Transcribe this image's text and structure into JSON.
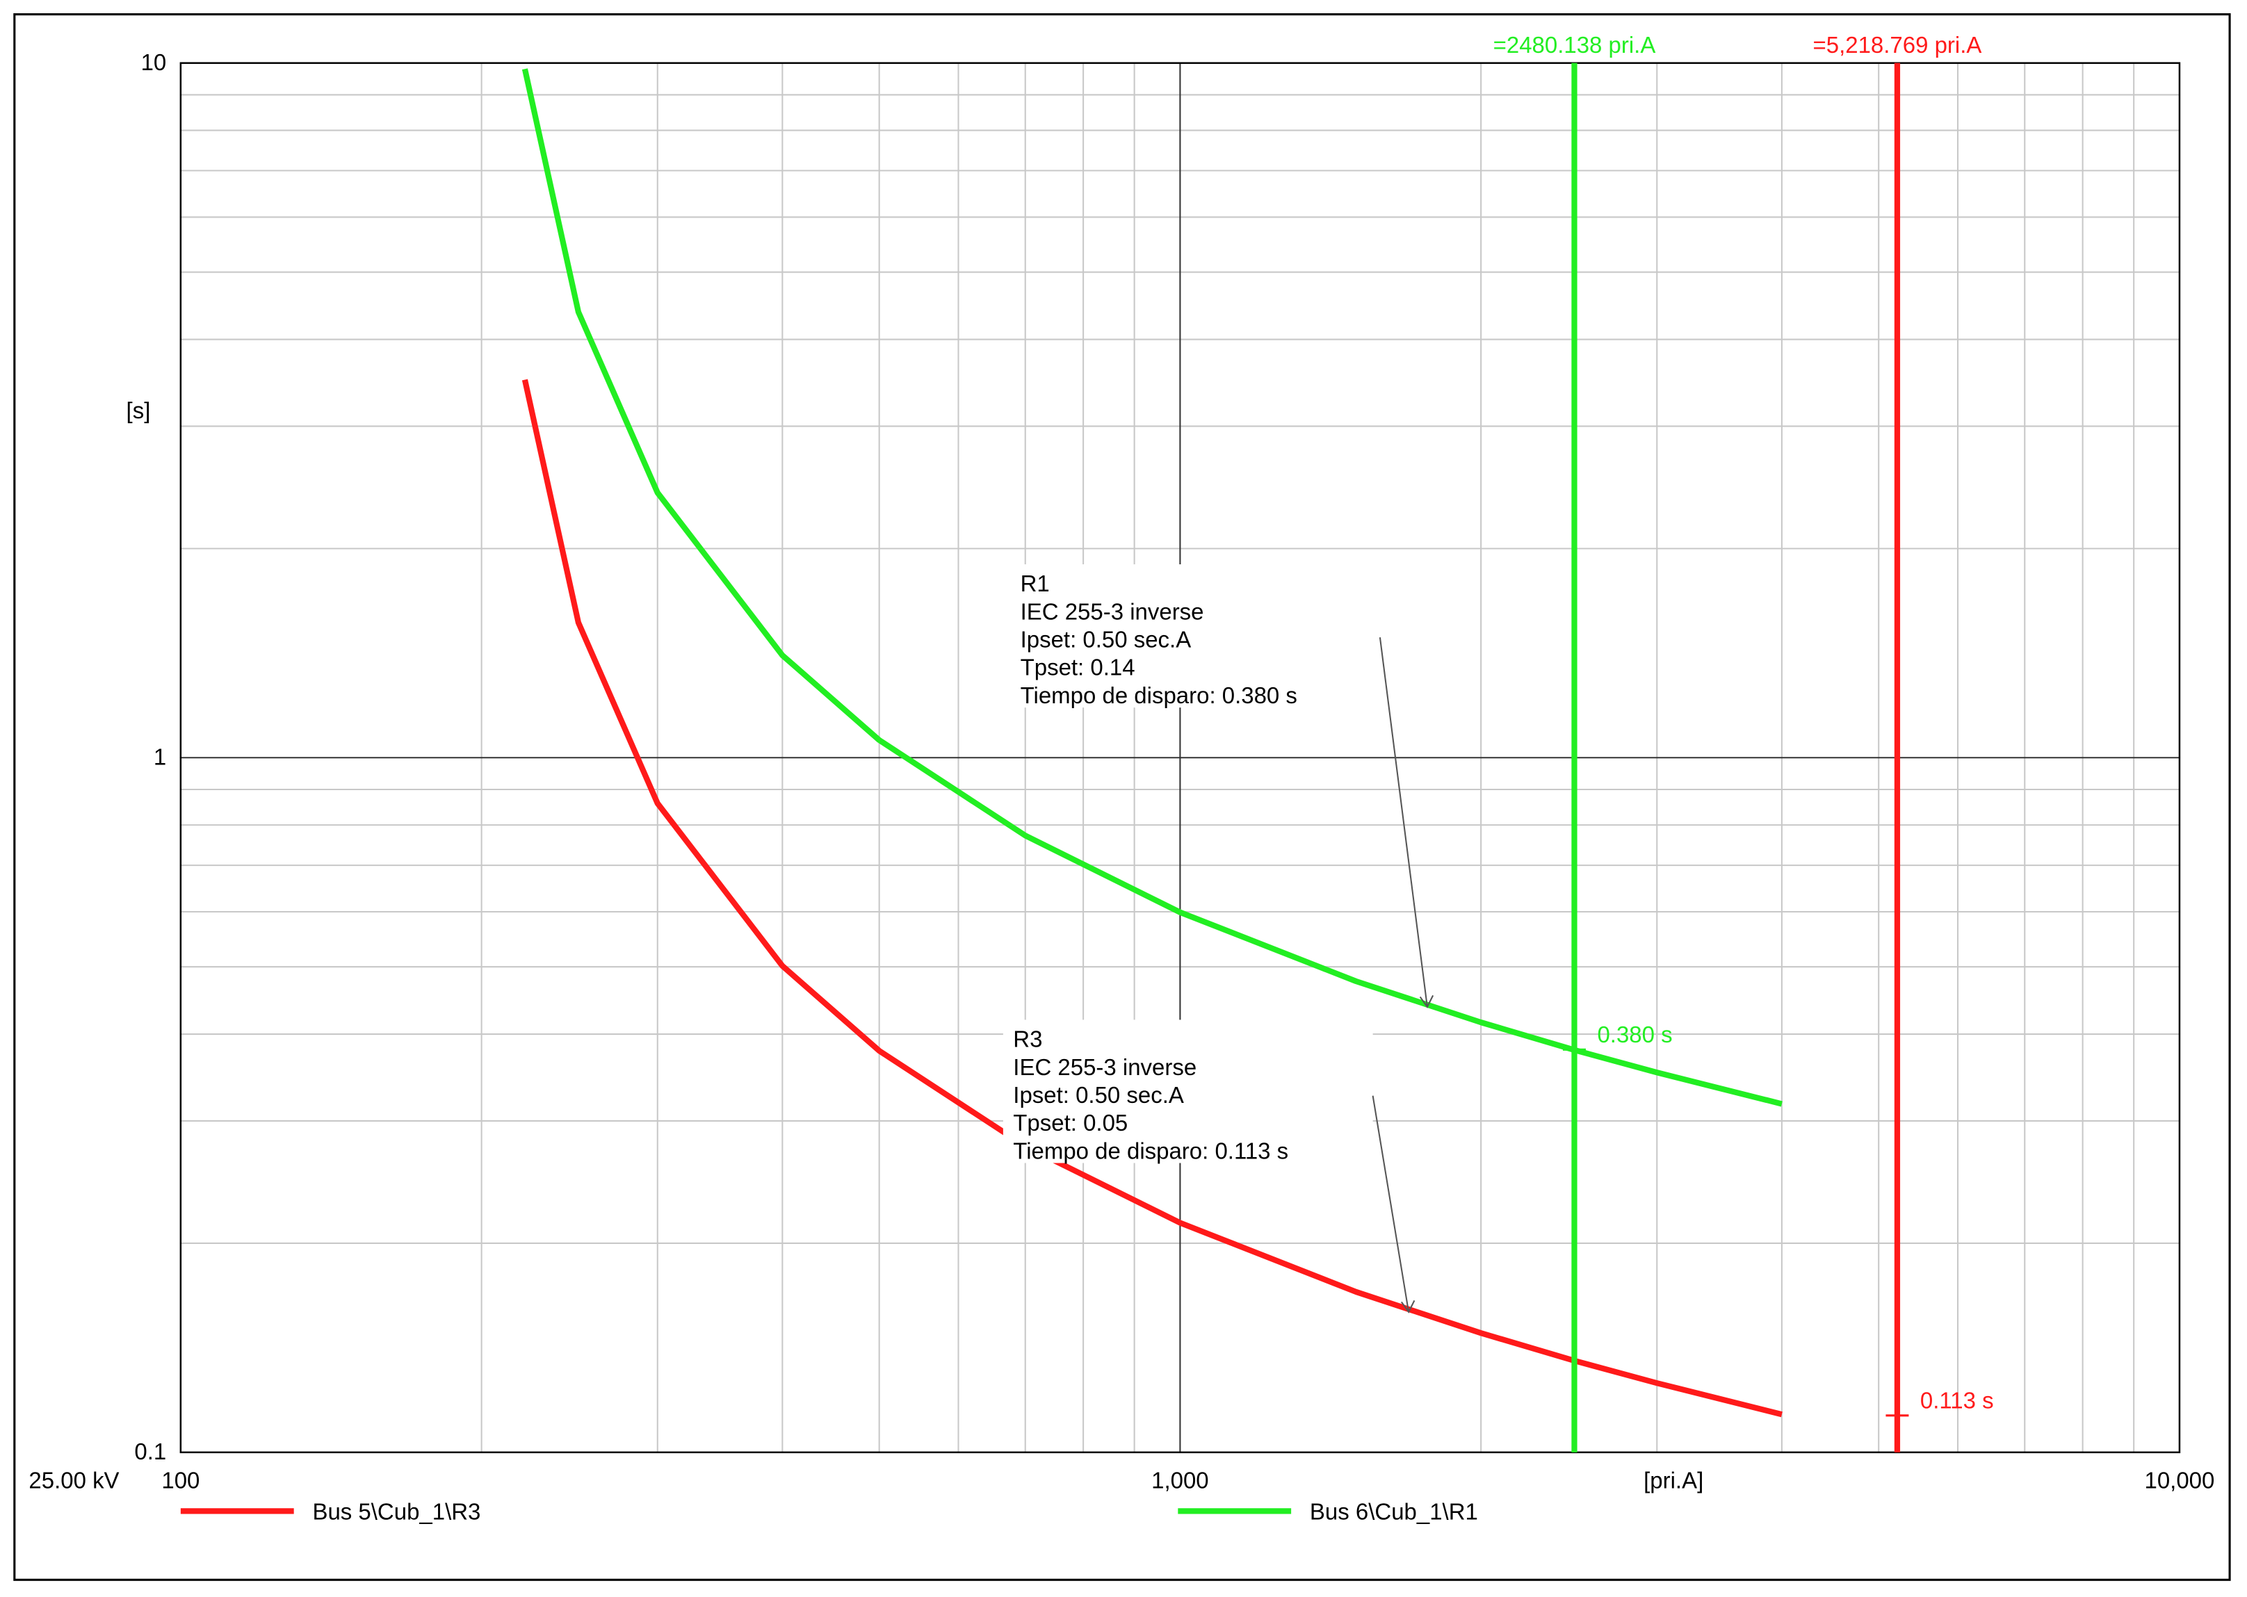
{
  "chart_data": {
    "type": "line",
    "log_x": true,
    "log_y": true,
    "grid": true,
    "minor_grid": true,
    "xlim": [
      100,
      10000
    ],
    "xticks": [
      100,
      {
        "value": 1000,
        "label": "1,000"
      },
      {
        "value": 10000,
        "label": "10,000"
      }
    ],
    "ylim": [
      0.1,
      10
    ],
    "yticks": [
      0.1,
      1,
      10
    ],
    "y_label": "[s]",
    "x_label": "[pri.A]",
    "voltage_label": "25.00 kV",
    "series": [
      {
        "name": "Bus 5\\Cub_1\\R3",
        "color": "#ff1a1a",
        "x": [
          221,
          250,
          300,
          400,
          500,
          700,
          1000,
          1500,
          2000,
          2480,
          3000,
          4000
        ],
        "values": [
          3.5,
          1.565,
          0.8596,
          0.5015,
          0.3785,
          0.2759,
          0.214,
          0.1702,
          0.1485,
          0.1355,
          0.1258,
          0.1134
        ]
      },
      {
        "name": "Bus 6\\Cub_1\\R1",
        "color": "#22ee22",
        "x": [
          221,
          250,
          300,
          400,
          500,
          700,
          1000,
          1500,
          2000,
          2480,
          3000,
          4000
        ],
        "values": [
          9.805,
          4.382,
          2.407,
          1.404,
          1.06,
          0.7725,
          0.599,
          0.4766,
          0.4159,
          0.3795,
          0.3522,
          0.3174
        ]
      }
    ],
    "vlines": [
      {
        "x": 2480.138,
        "label": "=2480.138 pri.A",
        "color": "#22ee22"
      },
      {
        "x": 5218.769,
        "label": "=5,218.769 pri.A",
        "color": "#ff1a1a"
      }
    ],
    "markers": [
      {
        "x": 2480.138,
        "y": 0.38,
        "label": "0.380 s",
        "color": "#22ee22"
      },
      {
        "x": 5218.769,
        "y": 0.113,
        "label": "0.113 s",
        "color": "#ff1a1a"
      }
    ],
    "annotations": [
      {
        "lines": [
          "R1",
          "IEC 255-3 inverse",
          "Ipset: 0.50 sec.A",
          "Tpset: 0.14",
          "Tiempo de disparo: 0.380 s"
        ]
      },
      {
        "lines": [
          "R3",
          "IEC 255-3 inverse",
          "Ipset: 0.50 sec.A",
          "Tpset: 0.05",
          "Tiempo de disparo: 0.113 s"
        ]
      }
    ]
  }
}
